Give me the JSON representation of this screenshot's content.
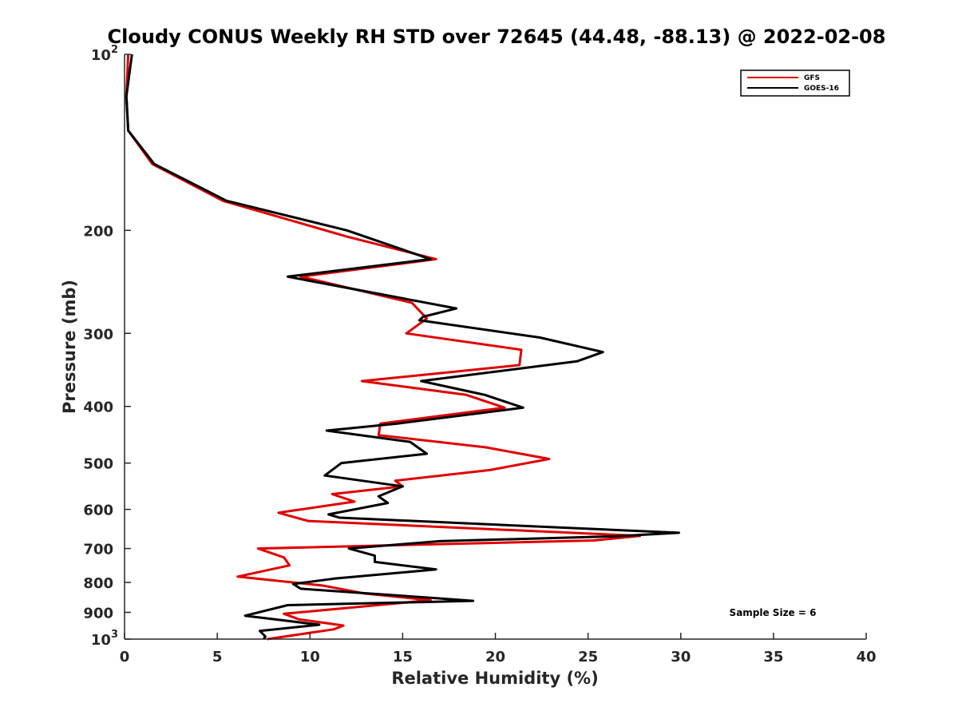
{
  "chart_data": {
    "type": "line",
    "title": "Cloudy CONUS Weekly RH STD over 72645 (44.48, -88.13) @ 2022-02-08",
    "xlabel": "Relative Humidity (%)",
    "ylabel": "Pressure (mb)",
    "xlim": [
      0,
      40
    ],
    "ylim": [
      100,
      1000
    ],
    "y_scale": "log",
    "y_reversed": true,
    "x_ticks": [
      "0",
      "5",
      "10",
      "15",
      "20",
      "25",
      "30",
      "35",
      "40"
    ],
    "y_ticks": [
      {
        "value": 100,
        "base": "10",
        "exp": "2"
      },
      {
        "value": 200,
        "label": "200"
      },
      {
        "value": 300,
        "label": "300"
      },
      {
        "value": 400,
        "label": "400"
      },
      {
        "value": 500,
        "label": "500"
      },
      {
        "value": 600,
        "label": "600"
      },
      {
        "value": 700,
        "label": "700"
      },
      {
        "value": 800,
        "label": "800"
      },
      {
        "value": 900,
        "label": "900"
      },
      {
        "value": 1000,
        "base": "10",
        "exp": "3"
      }
    ],
    "legend_position": "top-right",
    "grid": false,
    "annotation": "Sample Size = 6",
    "series": [
      {
        "name": "GFS",
        "color": "#e00000",
        "points": [
          [
            0.2,
            100
          ],
          [
            0.1,
            118
          ],
          [
            0.2,
            135
          ],
          [
            1.5,
            154
          ],
          [
            5.3,
            178
          ],
          [
            12,
            205
          ],
          [
            16.8,
            224
          ],
          [
            9.5,
            240
          ],
          [
            15.5,
            266
          ],
          [
            16.3,
            283
          ],
          [
            15.2,
            300
          ],
          [
            21.4,
            320
          ],
          [
            21.3,
            340
          ],
          [
            12.8,
            362
          ],
          [
            18.4,
            382
          ],
          [
            20.5,
            402
          ],
          [
            13.8,
            428
          ],
          [
            13.7,
            448
          ],
          [
            19.5,
            470
          ],
          [
            22.9,
            492
          ],
          [
            19.7,
            514
          ],
          [
            14.6,
            536
          ],
          [
            15.0,
            548
          ],
          [
            11.2,
            565
          ],
          [
            12.4,
            582
          ],
          [
            8.3,
            608
          ],
          [
            9.9,
            628
          ],
          [
            27.8,
            666
          ],
          [
            25.3,
            678
          ],
          [
            7.2,
            700
          ],
          [
            8.6,
            725
          ],
          [
            8.9,
            748
          ],
          [
            6.1,
            782
          ],
          [
            10.7,
            810
          ],
          [
            12.9,
            835
          ],
          [
            16.5,
            858
          ],
          [
            8.6,
            905
          ],
          [
            9.4,
            925
          ],
          [
            11.8,
            948
          ],
          [
            11.3,
            962
          ],
          [
            7.7,
            1000
          ]
        ]
      },
      {
        "name": "GOES-16",
        "color": "#000000",
        "points": [
          [
            0.4,
            100
          ],
          [
            0.1,
            118
          ],
          [
            0.2,
            135
          ],
          [
            1.6,
            154
          ],
          [
            5.5,
            178
          ],
          [
            12,
            200
          ],
          [
            16.5,
            224
          ],
          [
            8.8,
            240
          ],
          [
            17.9,
            272
          ],
          [
            16.1,
            281
          ],
          [
            15.9,
            285
          ],
          [
            22.4,
            305
          ],
          [
            25.8,
            323
          ],
          [
            24.4,
            335
          ],
          [
            16.0,
            362
          ],
          [
            19.4,
            382
          ],
          [
            21.5,
            402
          ],
          [
            14.7,
            428
          ],
          [
            10.9,
            440
          ],
          [
            15.4,
            460
          ],
          [
            16.3,
            482
          ],
          [
            11.7,
            500
          ],
          [
            10.8,
            525
          ],
          [
            15.0,
            548
          ],
          [
            13.7,
            570
          ],
          [
            14.2,
            585
          ],
          [
            11.0,
            612
          ],
          [
            11.6,
            620
          ],
          [
            29.9,
            658
          ],
          [
            26.5,
            667
          ],
          [
            17,
            680
          ],
          [
            12.1,
            700
          ],
          [
            13.5,
            720
          ],
          [
            13.5,
            738
          ],
          [
            16.8,
            760
          ],
          [
            11.3,
            788
          ],
          [
            9.1,
            805
          ],
          [
            9.5,
            820
          ],
          [
            16.5,
            850
          ],
          [
            18.8,
            860
          ],
          [
            8.8,
            875
          ],
          [
            6.5,
            912
          ],
          [
            10.5,
            945
          ],
          [
            7.3,
            968
          ],
          [
            7.6,
            990
          ],
          [
            7.5,
            1000
          ]
        ]
      }
    ]
  }
}
